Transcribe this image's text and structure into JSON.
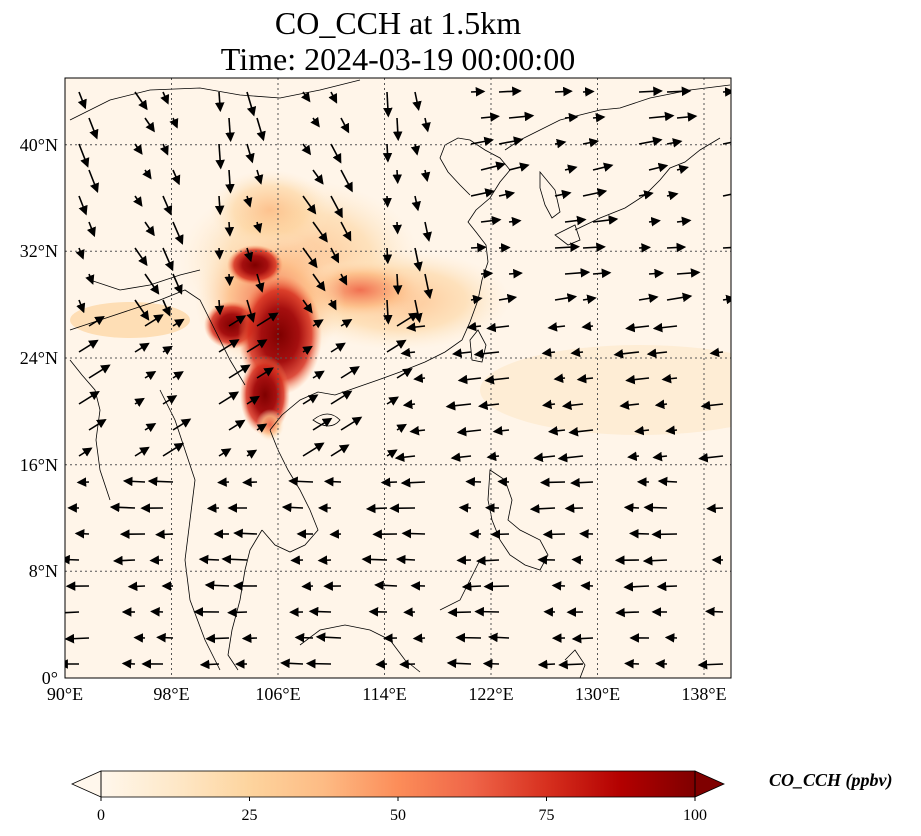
{
  "title": {
    "line1": "CO_CCH at 1.5km",
    "line2": "Time: 2024-03-19 00:00:00"
  },
  "map": {
    "lon_range": [
      90,
      140
    ],
    "lat_range": [
      0,
      45
    ],
    "lon_ticks": [
      "90°E",
      "98°E",
      "106°E",
      "114°E",
      "122°E",
      "130°E",
      "138°E"
    ],
    "lat_ticks": [
      "0°",
      "8°N",
      "16°N",
      "24°N",
      "32°N",
      "40°N"
    ],
    "gridlines": "dotted",
    "field_colormap": "OrRd",
    "high_concentration_region": "Southern China / Northern Vietnam",
    "wind_vectors": "black arrows"
  },
  "colorbar": {
    "label": "CO_CCH (ppbv)",
    "min": 0,
    "max": 100,
    "ticks": [
      "0",
      "25",
      "50",
      "75",
      "100"
    ],
    "extend": "both",
    "colors": [
      "#fff7ec",
      "#fee8c8",
      "#fdd49e",
      "#fdbb84",
      "#fc8d59",
      "#ef6548",
      "#d7301f",
      "#b30000",
      "#7f0000"
    ]
  }
}
